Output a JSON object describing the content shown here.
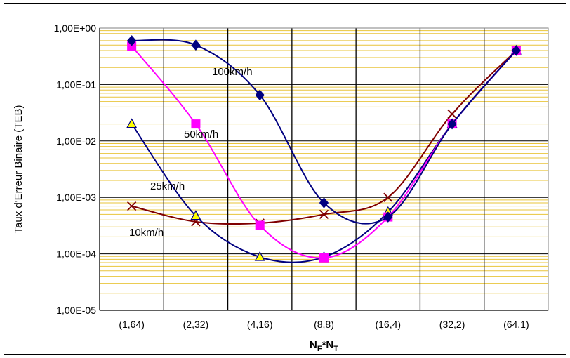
{
  "chart_data": {
    "type": "line",
    "title": "",
    "xlabel": {
      "base1": "N",
      "sub1": "F",
      "mid": "*N",
      "sub2": "T"
    },
    "ylabel": "Taux d'Erreur Binaire (TEB)",
    "yscale": "log",
    "ylim": [
      1e-05,
      1
    ],
    "y_tick_values": [
      1,
      0.1,
      0.01,
      0.001,
      0.0001,
      1e-05
    ],
    "y_tick_labels": [
      "1,00E+00",
      "1,00E-01",
      "1,00E-02",
      "1,00E-03",
      "1,00E-04",
      "1,00E-05"
    ],
    "categories": [
      "(1,64)",
      "(2,32)",
      "(4,16)",
      "(8,8)",
      "(16,4)",
      "(32,2)",
      "(64,1)"
    ],
    "grid": {
      "major": true,
      "minor": true
    },
    "series": [
      {
        "name": "100km/h",
        "color": "#000080",
        "marker": "diamond",
        "values": [
          0.6,
          0.5,
          0.065,
          0.0008,
          0.00045,
          0.02,
          0.4
        ]
      },
      {
        "name": "50km/h",
        "color": "#ff00ff",
        "marker": "square",
        "values": [
          0.48,
          0.02,
          0.00032,
          8.5e-05,
          0.00045,
          0.02,
          0.4
        ]
      },
      {
        "name": "25km/h",
        "color": "#000080",
        "marker": "triangle",
        "markerFill": "#ffff00",
        "values": [
          0.02,
          0.00047,
          8.8e-05,
          8.8e-05,
          0.00055,
          0.02,
          0.4
        ]
      },
      {
        "name": "10km/h",
        "color": "#800000",
        "marker": "x",
        "values": [
          0.0007,
          0.00037,
          0.00035,
          0.0005,
          0.001,
          0.03,
          0.4
        ]
      }
    ]
  }
}
